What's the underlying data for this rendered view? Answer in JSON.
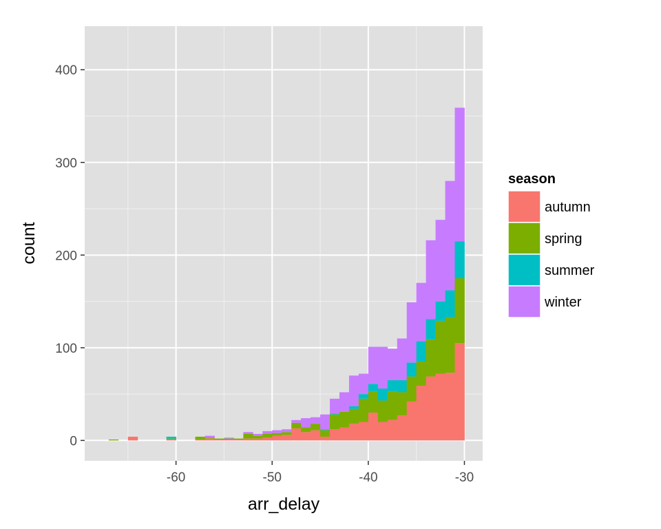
{
  "colors": {
    "panel": "#e0e0e0",
    "grid_major": "#ffffff",
    "grid_minor": "#f0f0f0",
    "tick": "#333333"
  },
  "chart_data": {
    "type": "bar",
    "stacked": true,
    "xlabel": "arr_delay",
    "ylabel": "count",
    "xlim": [
      -69.5,
      -28.1
    ],
    "ylim": [
      -22,
      447
    ],
    "x_ticks": [
      -60,
      -50,
      -40,
      -30
    ],
    "x_tick_labels": [
      "-60",
      "-50",
      "-40",
      "-30"
    ],
    "y_ticks": [
      0,
      100,
      200,
      300,
      400
    ],
    "y_tick_labels": [
      "0",
      "100",
      "200",
      "300",
      "400"
    ],
    "grid": true,
    "legend": {
      "title": "season",
      "position": "right"
    },
    "bin_width": 1,
    "bin_starts": [
      -68,
      -67,
      -66,
      -65,
      -64,
      -63,
      -62,
      -61,
      -60,
      -59,
      -58,
      -57,
      -56,
      -55,
      -54,
      -53,
      -52,
      -51,
      -50,
      -49,
      -48,
      -47,
      -46,
      -45,
      -44,
      -43,
      -42,
      -41,
      -40,
      -39,
      -38,
      -37,
      -36,
      -35,
      -34,
      -33,
      -32,
      -31
    ],
    "series": [
      {
        "name": "autumn",
        "color": "#f8766d",
        "values": [
          0,
          0,
          0,
          4,
          0,
          0,
          0,
          1,
          0,
          0,
          1,
          2,
          1,
          1,
          1,
          2,
          2,
          3,
          5,
          6,
          13,
          9,
          11,
          4,
          12,
          14,
          18,
          20,
          30,
          20,
          22,
          27,
          42,
          59,
          69,
          72,
          73,
          105
        ]
      },
      {
        "name": "spring",
        "color": "#7cae00",
        "values": [
          0,
          1,
          0,
          0,
          0,
          0,
          0,
          1,
          0,
          0,
          3,
          1,
          1,
          1,
          1,
          5,
          3,
          4,
          3,
          3,
          6,
          5,
          7,
          7,
          16,
          17,
          16,
          25,
          23,
          23,
          31,
          25,
          27,
          26,
          40,
          57,
          60,
          70
        ]
      },
      {
        "name": "summer",
        "color": "#00bfc4",
        "values": [
          0,
          0,
          0,
          0,
          0,
          0,
          0,
          2,
          0,
          0,
          0,
          0,
          0,
          0,
          0,
          0,
          0,
          0,
          0,
          0,
          0,
          0,
          0,
          1,
          1,
          0,
          3,
          5,
          8,
          13,
          12,
          13,
          15,
          22,
          22,
          21,
          29,
          40
        ]
      },
      {
        "name": "winter",
        "color": "#c77cff",
        "values": [
          0,
          0,
          0,
          0,
          0,
          0,
          0,
          0,
          0,
          0,
          0,
          2,
          0,
          1,
          0,
          2,
          2,
          3,
          3,
          3,
          3,
          10,
          7,
          16,
          16,
          21,
          33,
          22,
          40,
          45,
          34,
          45,
          65,
          63,
          85,
          88,
          118,
          144
        ]
      }
    ]
  }
}
